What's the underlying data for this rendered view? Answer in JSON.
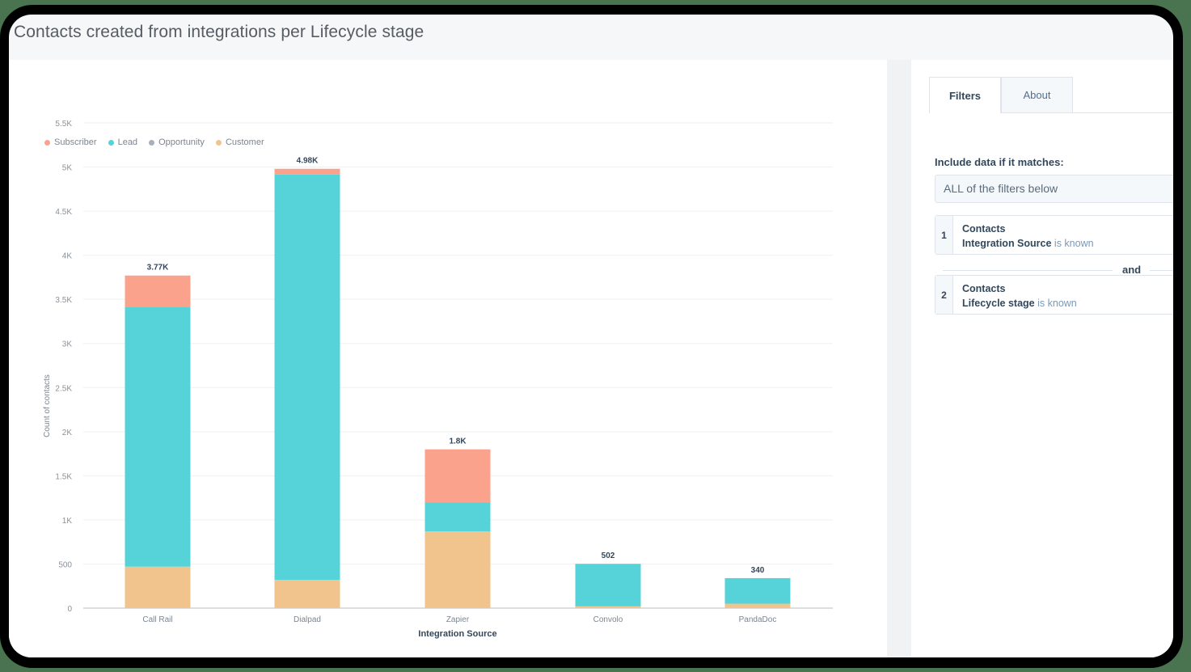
{
  "page": {
    "title": "Contacts created from integrations per Lifecycle stage"
  },
  "side_panel": {
    "tabs": [
      {
        "label": "Filters",
        "active": true
      },
      {
        "label": "About",
        "active": false
      }
    ],
    "include_label": "Include data if it matches:",
    "match_value": "ALL of the filters below",
    "filters": [
      {
        "number": "1",
        "object": "Contacts",
        "property": "Integration Source",
        "operator": "is known"
      },
      {
        "number": "2",
        "object": "Contacts",
        "property": "Lifecycle stage",
        "operator": "is known"
      }
    ],
    "conjunction": "and"
  },
  "chart_data": {
    "type": "bar",
    "stacked": true,
    "title": "Contacts created from integrations per Lifecycle stage",
    "xlabel": "Integration Source",
    "ylabel": "Count of contacts",
    "ylim": [
      0,
      5500
    ],
    "yticks": [
      0,
      500,
      1000,
      1500,
      2000,
      2500,
      3000,
      3500,
      4000,
      4500,
      5000,
      5500
    ],
    "ytick_labels": [
      "0",
      "500",
      "1K",
      "1.5K",
      "2K",
      "2.5K",
      "3K",
      "3.5K",
      "4K",
      "4.5K",
      "5K",
      "5.5K"
    ],
    "grid": true,
    "legend_position": "top-left",
    "categories": [
      "Call Rail",
      "Dialpad",
      "Zapier",
      "Convolo",
      "PandaDoc"
    ],
    "totals": [
      3770,
      4980,
      1800,
      502,
      340
    ],
    "total_labels": [
      "3.77K",
      "4.98K",
      "1.8K",
      "502",
      "340"
    ],
    "series": [
      {
        "name": "Customer",
        "color": "#f2c48d",
        "values": [
          470,
          320,
          870,
          20,
          50
        ]
      },
      {
        "name": "Opportunity",
        "color": "#a8b0bb",
        "values": [
          0,
          0,
          0,
          0,
          0
        ]
      },
      {
        "name": "Lead",
        "color": "#55d3d9",
        "values": [
          2940,
          4595,
          330,
          482,
          290
        ]
      },
      {
        "name": "Subscriber",
        "color": "#fba28d",
        "values": [
          360,
          65,
          600,
          0,
          0
        ]
      }
    ],
    "legend": [
      {
        "name": "Subscriber",
        "color": "#fba28d"
      },
      {
        "name": "Lead",
        "color": "#55d3d9"
      },
      {
        "name": "Opportunity",
        "color": "#a8b0bb"
      },
      {
        "name": "Customer",
        "color": "#f2c48d"
      }
    ]
  }
}
